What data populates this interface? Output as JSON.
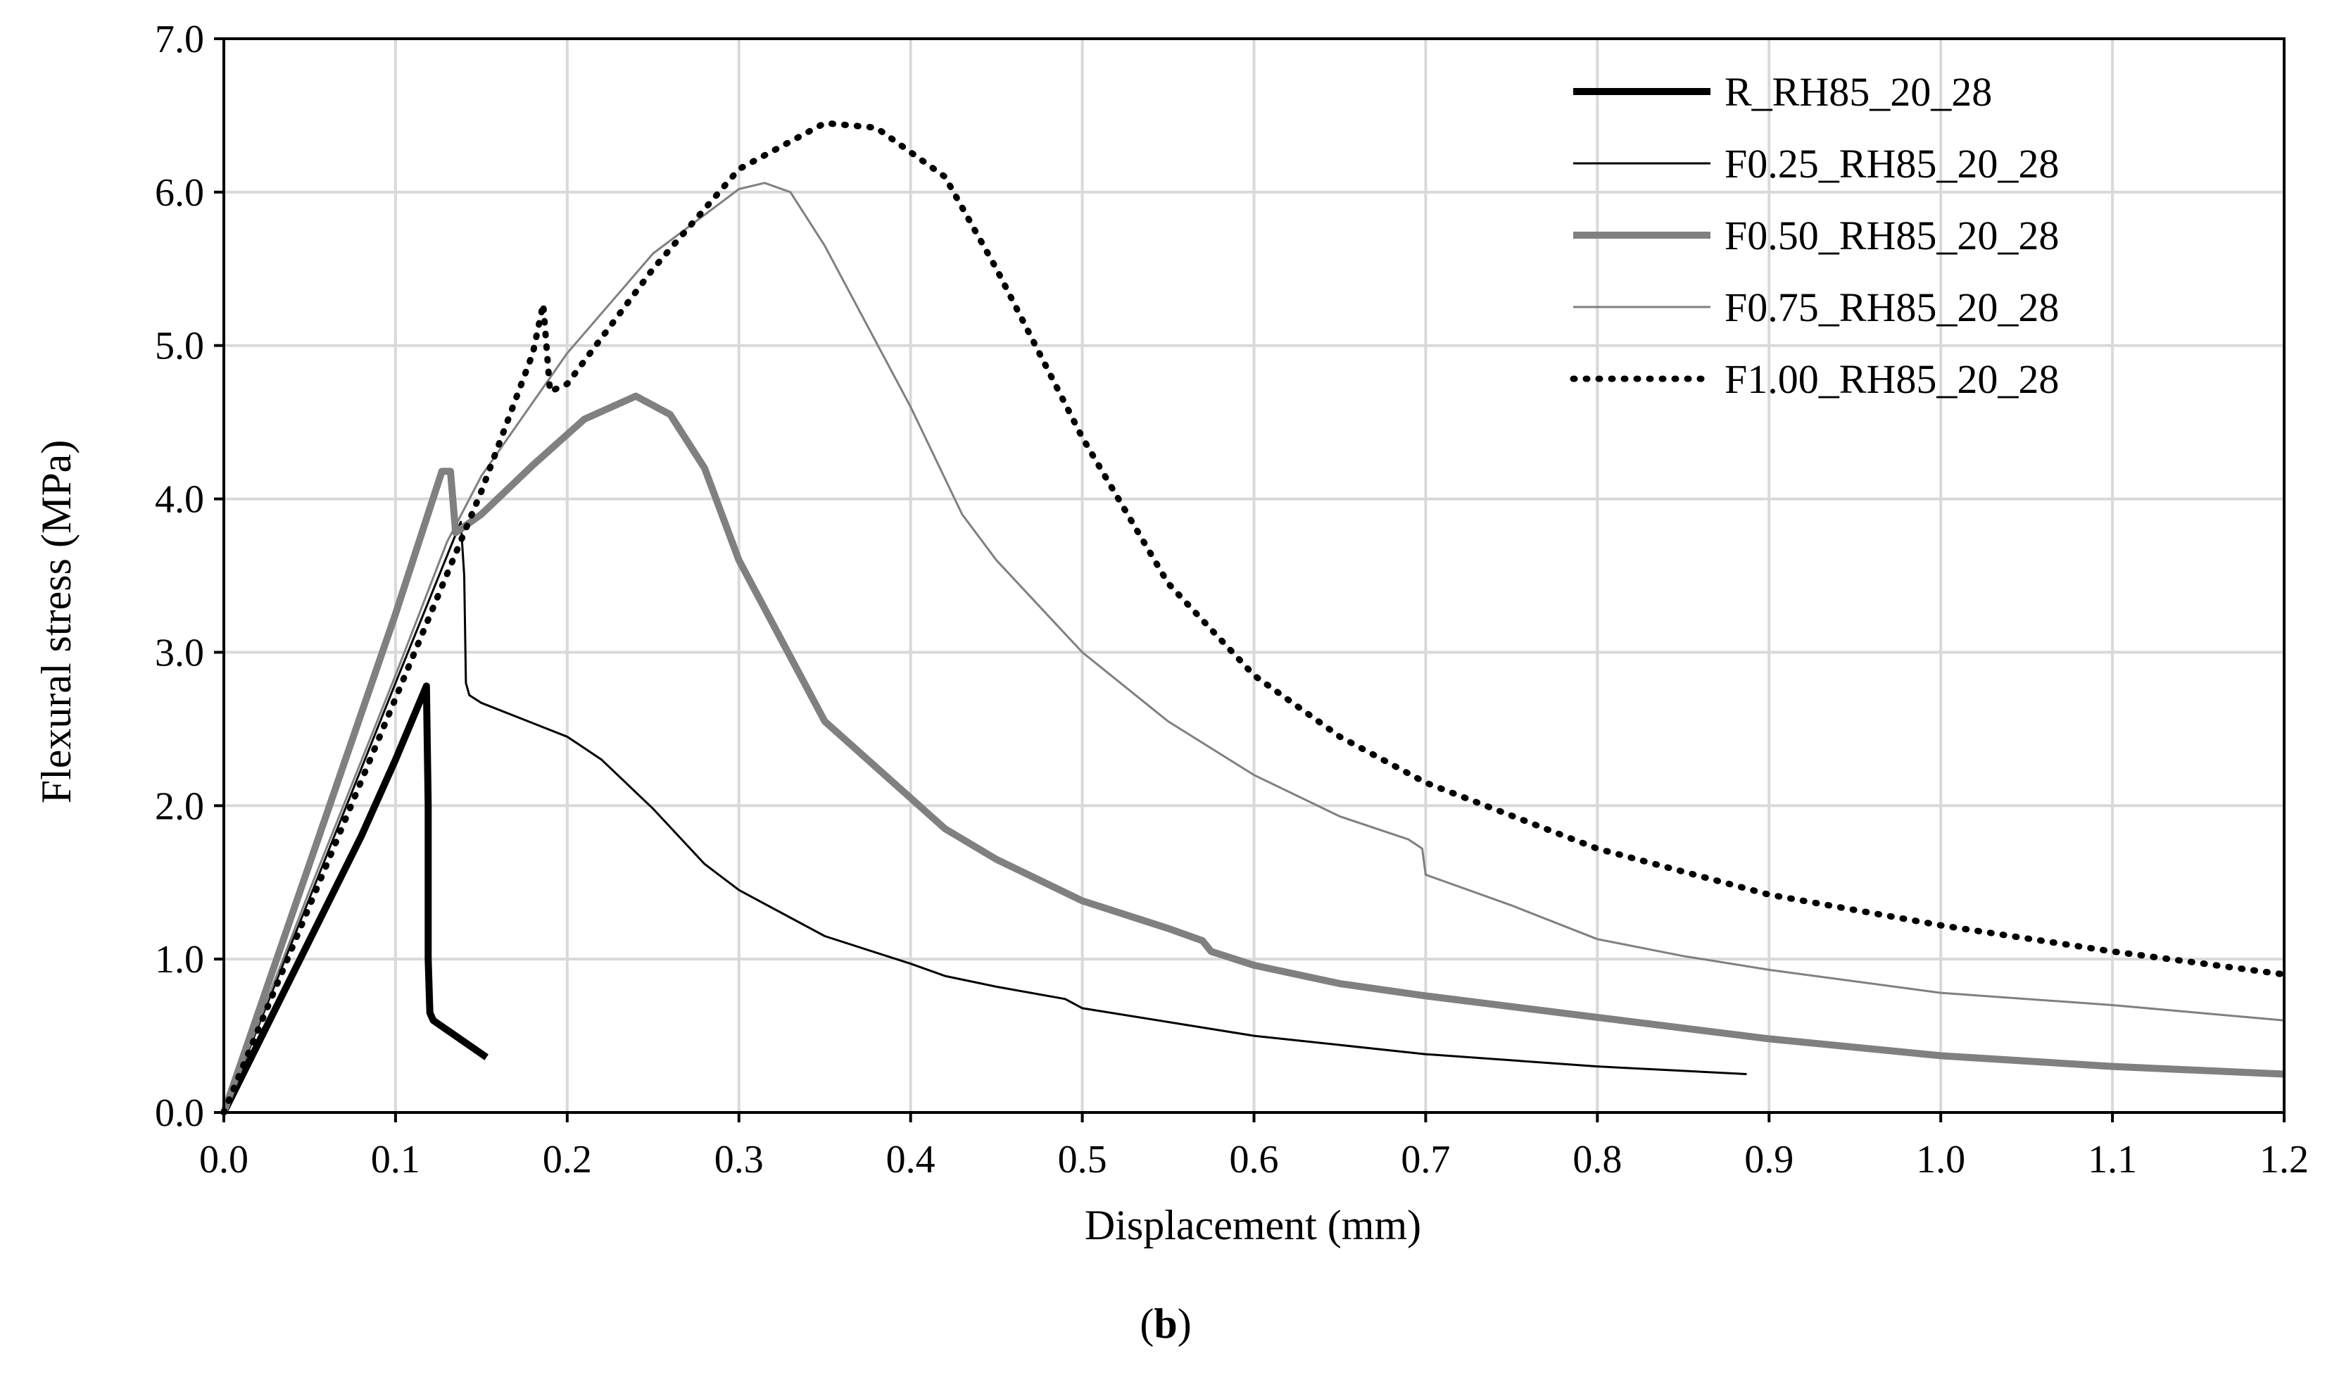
{
  "chart_data": {
    "type": "line",
    "title": "",
    "xlabel": "Displacement (mm)",
    "ylabel": "Flexural stress (MPa)",
    "xlim": [
      0,
      1.2
    ],
    "ylim": [
      0,
      7
    ],
    "grid": true,
    "legend_position": "top-right",
    "x_ticks": [
      "0.0",
      "0.1",
      "0.2",
      "0.3",
      "0.4",
      "0.5",
      "0.6",
      "0.7",
      "0.8",
      "0.9",
      "1.0",
      "1.1",
      "1.2"
    ],
    "y_ticks": [
      "0.0",
      "1.0",
      "2.0",
      "3.0",
      "4.0",
      "5.0",
      "6.0",
      "7.0"
    ],
    "caption": {
      "open": "(",
      "label": "b",
      "close": ")"
    },
    "series": [
      {
        "name": "R_RH85_20_28",
        "color": "#000000",
        "style": "thick-solid",
        "points": [
          [
            0,
            0
          ],
          [
            0.04,
            0.9
          ],
          [
            0.08,
            1.8
          ],
          [
            0.1,
            2.3
          ],
          [
            0.118,
            2.78
          ],
          [
            0.119,
            2.0
          ],
          [
            0.119,
            1.0
          ],
          [
            0.12,
            0.65
          ],
          [
            0.122,
            0.6
          ],
          [
            0.153,
            0.36
          ]
        ]
      },
      {
        "name": "F0.25_RH85_20_28",
        "color": "#000000",
        "style": "thin-solid",
        "points": [
          [
            0,
            0
          ],
          [
            0.05,
            1.4
          ],
          [
            0.1,
            2.8
          ],
          [
            0.138,
            3.85
          ],
          [
            0.14,
            3.5
          ],
          [
            0.141,
            2.8
          ],
          [
            0.143,
            2.72
          ],
          [
            0.15,
            2.67
          ],
          [
            0.2,
            2.45
          ],
          [
            0.22,
            2.3
          ],
          [
            0.25,
            1.98
          ],
          [
            0.28,
            1.62
          ],
          [
            0.3,
            1.45
          ],
          [
            0.35,
            1.15
          ],
          [
            0.4,
            0.97
          ],
          [
            0.42,
            0.89
          ],
          [
            0.45,
            0.82
          ],
          [
            0.49,
            0.74
          ],
          [
            0.5,
            0.68
          ],
          [
            0.6,
            0.5
          ],
          [
            0.7,
            0.38
          ],
          [
            0.8,
            0.3
          ],
          [
            0.887,
            0.25
          ]
        ]
      },
      {
        "name": "F0.50_RH85_20_28",
        "color": "#808080",
        "style": "thick-solid",
        "points": [
          [
            0,
            0
          ],
          [
            0.06,
            1.95
          ],
          [
            0.1,
            3.25
          ],
          [
            0.127,
            4.18
          ],
          [
            0.132,
            4.18
          ],
          [
            0.135,
            3.78
          ],
          [
            0.15,
            3.9
          ],
          [
            0.18,
            4.22
          ],
          [
            0.21,
            4.52
          ],
          [
            0.24,
            4.67
          ],
          [
            0.26,
            4.55
          ],
          [
            0.28,
            4.2
          ],
          [
            0.3,
            3.6
          ],
          [
            0.35,
            2.55
          ],
          [
            0.4,
            2.05
          ],
          [
            0.42,
            1.85
          ],
          [
            0.45,
            1.65
          ],
          [
            0.5,
            1.38
          ],
          [
            0.55,
            1.2
          ],
          [
            0.57,
            1.12
          ],
          [
            0.575,
            1.05
          ],
          [
            0.6,
            0.96
          ],
          [
            0.65,
            0.84
          ],
          [
            0.7,
            0.76
          ],
          [
            0.8,
            0.62
          ],
          [
            0.9,
            0.48
          ],
          [
            1.0,
            0.37
          ],
          [
            1.1,
            0.3
          ],
          [
            1.2,
            0.25
          ]
        ]
      },
      {
        "name": "F0.75_RH85_20_28",
        "color": "#808080",
        "style": "thin-solid",
        "points": [
          [
            0,
            0
          ],
          [
            0.05,
            1.45
          ],
          [
            0.1,
            2.85
          ],
          [
            0.13,
            3.72
          ],
          [
            0.15,
            4.15
          ],
          [
            0.2,
            4.95
          ],
          [
            0.25,
            5.6
          ],
          [
            0.3,
            6.02
          ],
          [
            0.315,
            6.06
          ],
          [
            0.33,
            6.0
          ],
          [
            0.35,
            5.65
          ],
          [
            0.4,
            4.6
          ],
          [
            0.43,
            3.9
          ],
          [
            0.45,
            3.6
          ],
          [
            0.5,
            3.0
          ],
          [
            0.55,
            2.55
          ],
          [
            0.6,
            2.2
          ],
          [
            0.65,
            1.93
          ],
          [
            0.69,
            1.78
          ],
          [
            0.698,
            1.72
          ],
          [
            0.7,
            1.55
          ],
          [
            0.75,
            1.35
          ],
          [
            0.8,
            1.13
          ],
          [
            0.85,
            1.02
          ],
          [
            0.9,
            0.93
          ],
          [
            1.0,
            0.78
          ],
          [
            1.1,
            0.7
          ],
          [
            1.2,
            0.6
          ]
        ]
      },
      {
        "name": "F1.00_RH85_20_28",
        "color": "#000000",
        "style": "dotted",
        "points": [
          [
            0,
            0
          ],
          [
            0.05,
            1.35
          ],
          [
            0.1,
            2.7
          ],
          [
            0.15,
            4.05
          ],
          [
            0.18,
            4.95
          ],
          [
            0.186,
            5.27
          ],
          [
            0.19,
            4.7
          ],
          [
            0.2,
            4.75
          ],
          [
            0.25,
            5.5
          ],
          [
            0.3,
            6.15
          ],
          [
            0.35,
            6.45
          ],
          [
            0.38,
            6.42
          ],
          [
            0.42,
            6.1
          ],
          [
            0.45,
            5.5
          ],
          [
            0.5,
            4.4
          ],
          [
            0.55,
            3.45
          ],
          [
            0.6,
            2.85
          ],
          [
            0.65,
            2.45
          ],
          [
            0.7,
            2.15
          ],
          [
            0.8,
            1.72
          ],
          [
            0.9,
            1.42
          ],
          [
            1.0,
            1.22
          ],
          [
            1.1,
            1.05
          ],
          [
            1.2,
            0.9
          ]
        ]
      }
    ]
  }
}
